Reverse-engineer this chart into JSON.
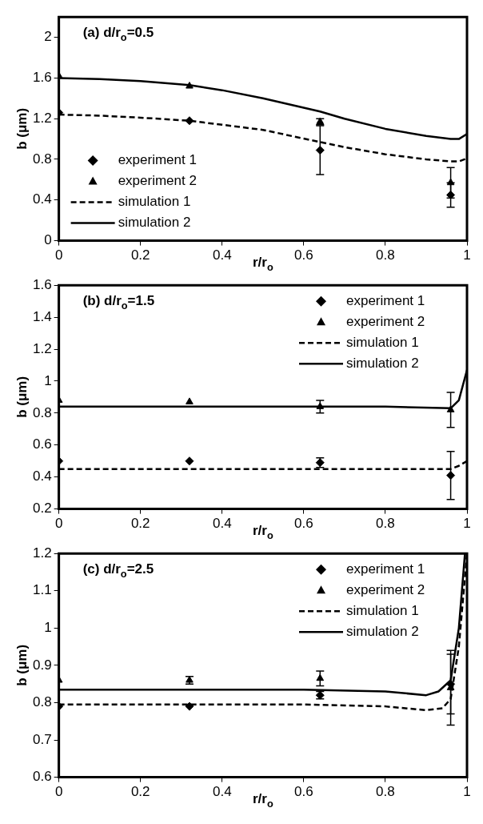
{
  "chart_data": [
    {
      "type": "scatter",
      "title": "(a) d/r$_{o}$=0.5",
      "xlabel": "r/r$_{o}$",
      "ylabel": "b (μm)",
      "xlim": [
        0,
        1
      ],
      "xticks": [
        0,
        0.2,
        0.4,
        0.6,
        0.8,
        1
      ],
      "ylim": [
        0,
        2.2
      ],
      "yticks": [
        0,
        0.4,
        0.8,
        1.2,
        1.6,
        2
      ],
      "grid": false,
      "legend": "bottom left",
      "series": [
        {
          "name": "experiment 1",
          "marker": "diamond",
          "color": "#000000",
          "x": [
            0,
            0.32,
            0.64,
            0.96
          ],
          "values": [
            1.26,
            1.18,
            0.89,
            0.45
          ],
          "errors": [
            null,
            null,
            0.24,
            0.12
          ]
        },
        {
          "name": "experiment 2",
          "marker": "triangle",
          "color": "#000000",
          "x": [
            0,
            0.32,
            0.64,
            0.96
          ],
          "values": [
            1.62,
            1.52,
            1.17,
            0.57
          ],
          "errors": [
            null,
            null,
            0.03,
            0.15
          ]
        },
        {
          "name": "simulation 1",
          "type": "line",
          "marker": "none",
          "line_style": "dashed",
          "color": "#000000",
          "x": [
            0,
            0.1,
            0.2,
            0.32,
            0.4,
            0.5,
            0.64,
            0.7,
            0.8,
            0.9,
            0.96,
            0.98,
            1
          ],
          "values": [
            1.24,
            1.23,
            1.21,
            1.18,
            1.14,
            1.09,
            0.97,
            0.92,
            0.85,
            0.8,
            0.78,
            0.78,
            0.81
          ]
        },
        {
          "name": "simulation 2",
          "type": "line",
          "marker": "none",
          "line_style": "solid",
          "color": "#000000",
          "x": [
            0,
            0.1,
            0.2,
            0.32,
            0.4,
            0.5,
            0.64,
            0.7,
            0.8,
            0.9,
            0.96,
            0.98,
            1
          ],
          "values": [
            1.6,
            1.59,
            1.57,
            1.53,
            1.48,
            1.4,
            1.27,
            1.2,
            1.1,
            1.03,
            1.0,
            1.0,
            1.05
          ]
        }
      ]
    },
    {
      "type": "scatter",
      "title": "(b) d/r$_{o}$=1.5",
      "xlabel": "r/r$_{o}$",
      "ylabel": "b (μm)",
      "xlim": [
        0,
        1
      ],
      "xticks": [
        0,
        0.2,
        0.4,
        0.6,
        0.8,
        1
      ],
      "ylim": [
        0.2,
        1.6
      ],
      "yticks": [
        0.2,
        0.4,
        0.6,
        0.8,
        1,
        1.2,
        1.4,
        1.6
      ],
      "grid": false,
      "legend": "top right",
      "series": [
        {
          "name": "experiment 1",
          "marker": "diamond",
          "color": "#000000",
          "x": [
            0,
            0.32,
            0.64,
            0.96
          ],
          "values": [
            0.5,
            0.5,
            0.49,
            0.41
          ],
          "errors": [
            null,
            null,
            0.03,
            0.15
          ]
        },
        {
          "name": "experiment 2",
          "marker": "triangle",
          "color": "#000000",
          "x": [
            0,
            0.32,
            0.64,
            0.96
          ],
          "values": [
            0.88,
            0.87,
            0.84,
            0.82
          ],
          "errors": [
            null,
            null,
            0.04,
            0.11
          ]
        },
        {
          "name": "simulation 1",
          "type": "line",
          "marker": "none",
          "line_style": "dashed",
          "color": "#000000",
          "x": [
            0,
            0.2,
            0.4,
            0.6,
            0.8,
            0.96,
            0.98,
            1
          ],
          "values": [
            0.45,
            0.45,
            0.45,
            0.45,
            0.45,
            0.45,
            0.47,
            0.5
          ]
        },
        {
          "name": "simulation 2",
          "type": "line",
          "marker": "none",
          "line_style": "solid",
          "color": "#000000",
          "x": [
            0,
            0.2,
            0.4,
            0.6,
            0.8,
            0.96,
            0.98,
            1
          ],
          "values": [
            0.84,
            0.84,
            0.84,
            0.84,
            0.84,
            0.83,
            0.88,
            1.07
          ]
        }
      ]
    },
    {
      "type": "scatter",
      "title": "(c) d/r$_{o}$=2.5",
      "xlabel": "r/r$_{o}$",
      "ylabel": "b (μm)",
      "xlim": [
        0,
        1
      ],
      "xticks": [
        0,
        0.2,
        0.4,
        0.6,
        0.8,
        1
      ],
      "ylim": [
        0.6,
        1.2
      ],
      "yticks": [
        0.6,
        0.7,
        0.8,
        0.9,
        1,
        1.1,
        1.2
      ],
      "grid": false,
      "legend": "top right",
      "series": [
        {
          "name": "experiment 1",
          "marker": "diamond",
          "color": "#000000",
          "x": [
            0,
            0.32,
            0.64,
            0.96
          ],
          "values": [
            0.79,
            0.79,
            0.82,
            0.85
          ],
          "errors": [
            null,
            null,
            0.01,
            0.08
          ]
        },
        {
          "name": "experiment 2",
          "marker": "triangle",
          "color": "#000000",
          "x": [
            0,
            0.32,
            0.64,
            0.96
          ],
          "values": [
            0.86,
            0.86,
            0.865,
            0.84
          ],
          "errors": [
            null,
            0.01,
            0.02,
            0.1
          ]
        },
        {
          "name": "simulation 1",
          "type": "line",
          "marker": "none",
          "line_style": "dashed",
          "color": "#000000",
          "x": [
            0,
            0.2,
            0.4,
            0.6,
            0.8,
            0.9,
            0.94,
            0.96,
            0.98,
            1
          ],
          "values": [
            0.795,
            0.795,
            0.795,
            0.795,
            0.79,
            0.78,
            0.785,
            0.81,
            0.95,
            1.2
          ]
        },
        {
          "name": "simulation 2",
          "type": "line",
          "marker": "none",
          "line_style": "solid",
          "color": "#000000",
          "x": [
            0,
            0.2,
            0.4,
            0.6,
            0.8,
            0.9,
            0.93,
            0.96,
            0.98,
            0.995
          ],
          "values": [
            0.835,
            0.835,
            0.835,
            0.835,
            0.83,
            0.82,
            0.83,
            0.86,
            1.0,
            1.2
          ]
        }
      ]
    }
  ]
}
